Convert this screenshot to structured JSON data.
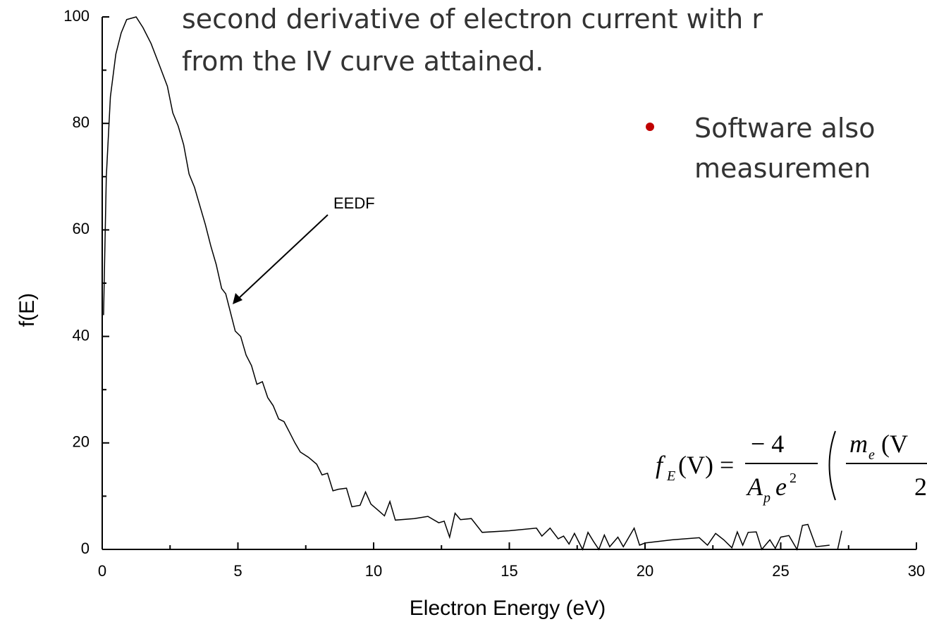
{
  "chart_data": {
    "type": "line",
    "xlabel": "Electron Energy (eV)",
    "ylabel": "f(E)",
    "xlim": [
      0,
      30
    ],
    "xticks": [
      0,
      5,
      10,
      15,
      20,
      25,
      30
    ],
    "ylim": [
      0,
      100
    ],
    "yticks": [
      0,
      20,
      40,
      60,
      80,
      100
    ],
    "x": [
      0.05,
      0.15,
      0.3,
      0.5,
      0.7,
      0.9,
      1.25,
      1.5,
      1.8,
      2.1,
      2.4,
      2.6,
      2.8,
      3.0,
      3.2,
      3.4,
      3.6,
      3.8,
      4.0,
      4.2,
      4.4,
      4.55,
      4.7,
      4.9,
      5.1,
      5.3,
      5.5,
      5.7,
      5.9,
      6.1,
      6.3,
      6.5,
      6.7,
      6.9,
      7.1,
      7.3,
      7.6,
      7.9,
      8.1,
      8.3,
      8.5,
      8.7,
      9.0,
      9.2,
      9.5,
      9.7,
      9.9,
      10.2,
      10.4,
      10.6,
      10.8,
      11.5,
      12.0,
      12.4,
      12.6,
      12.8,
      13.0,
      13.2,
      13.6,
      14.0,
      15.0,
      16.0,
      16.2,
      16.5,
      16.8,
      17.0,
      17.2,
      17.4,
      17.7,
      17.9,
      18.1,
      18.3,
      18.5,
      18.7,
      19.0,
      19.2,
      19.6,
      19.8,
      20.0,
      21.0,
      22.0,
      22.3,
      22.6,
      22.9,
      23.2,
      23.4,
      23.6,
      23.8,
      24.1,
      24.3,
      24.6,
      24.8,
      25.0,
      25.3,
      25.6,
      25.8,
      26.0,
      26.3,
      26.8,
      27.0,
      27.1,
      27.25
    ],
    "series": [
      {
        "name": "EEDF",
        "color": "#000000",
        "values": [
          44,
          70,
          85,
          93,
          97,
          99.5,
          100,
          98,
          95,
          91,
          87,
          82,
          79.5,
          76,
          70.5,
          68,
          64.5,
          61,
          57,
          53.5,
          49,
          48,
          45,
          41,
          40,
          36.5,
          34.5,
          31,
          31.5,
          28.5,
          27,
          24.5,
          24,
          22,
          20,
          18.3,
          17.3,
          16,
          14,
          14.3,
          11,
          11.3,
          11.5,
          8,
          8.3,
          10.8,
          8.5,
          7.2,
          6.3,
          9,
          5.5,
          5.8,
          6.2,
          5,
          5.3,
          2.3,
          6.8,
          5.6,
          5.8,
          3.2,
          3.5,
          4,
          2.5,
          4,
          2,
          2.5,
          1,
          3,
          0,
          3.2,
          1.5,
          0,
          2.7,
          0.5,
          2.3,
          0.5,
          4,
          0.8,
          1.2,
          1.8,
          2.2,
          0.8,
          3,
          1.8,
          0.3,
          3.3,
          0.8,
          3.2,
          3.3,
          0,
          1.8,
          0.2,
          2.3,
          2.6,
          0,
          4.5,
          4.7,
          0.5,
          0.8,
          null,
          0.1,
          3.5
        ]
      }
    ],
    "annotation": "EEDF",
    "slide_text": [
      "second derivative of electron current with r",
      "from the IV curve attained.",
      "Software also",
      "measuremen"
    ],
    "formula": {
      "f": "f",
      "sub": "E",
      "arg": "(V) =",
      "num": "− 4",
      "den_a": "A",
      "den_sub": "p",
      "den_e": "e",
      "den_sup": "2",
      "m": "m",
      "m_sub": "e",
      "m_arg": "(V",
      "two": "2"
    }
  }
}
